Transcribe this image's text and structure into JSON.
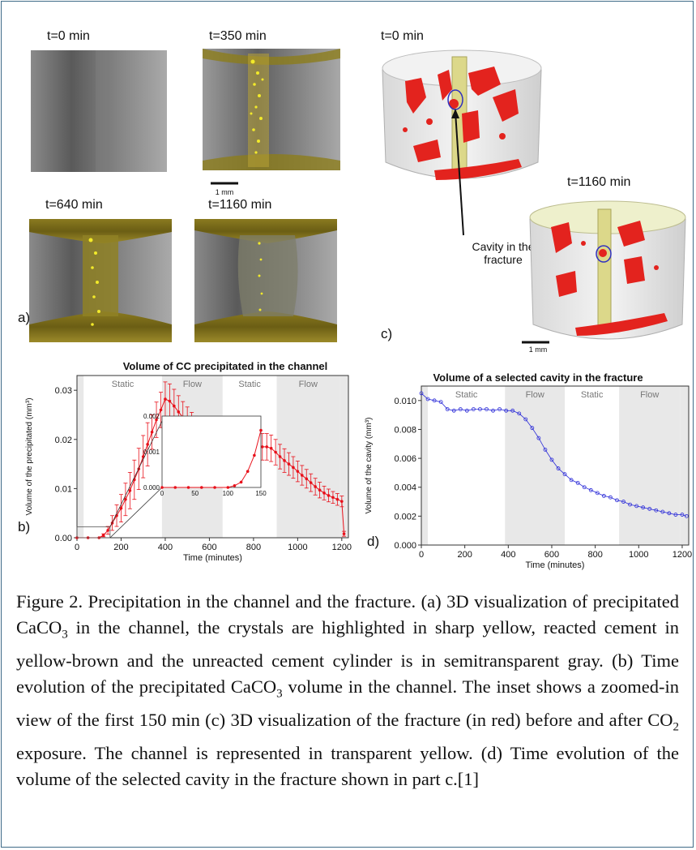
{
  "panel_a": {
    "label": "a)",
    "frames": [
      {
        "title": "t=0 min"
      },
      {
        "title": "t=350 min"
      },
      {
        "title": "t=640 min"
      },
      {
        "title": "t=1160 min"
      }
    ],
    "scalebar": "1 mm"
  },
  "panel_c": {
    "label": "c)",
    "frames": [
      {
        "title": "t=0 min"
      },
      {
        "title": "t=1160 min"
      }
    ],
    "annotation_line1": "Cavity in the",
    "annotation_line2": "fracture",
    "scalebar": "1 mm"
  },
  "panel_b": {
    "label": "b)"
  },
  "panel_d": {
    "label": "d)"
  },
  "colors": {
    "frame_border": "#3f6b88",
    "fracture_red": "#e3231e",
    "crystal_yellow": "#f2ea2a",
    "cement_gray": "#6c6c6c",
    "series_b": "#e8101a",
    "series_d": "#2c2cd8",
    "phase_gray": "#e8e8e8"
  },
  "chart_data": [
    {
      "type": "line",
      "title": "Volume of CC precipitated in the channel",
      "xlabel": "Time (minutes)",
      "ylabel": "Volume of the precipitated (mm³)",
      "xlim": [
        0,
        1230
      ],
      "ylim": [
        0,
        0.033
      ],
      "xticks": [
        0,
        200,
        400,
        600,
        800,
        1000,
        1200
      ],
      "yticks": [
        0.0,
        0.01,
        0.02,
        0.03
      ],
      "ytick_labels": [
        "0.00",
        "0.01",
        "0.02",
        "0.03"
      ],
      "phases": [
        {
          "label": "Static",
          "start": 30,
          "end": 385
        },
        {
          "label": "Flow",
          "start": 385,
          "end": 660
        },
        {
          "label": "Static",
          "start": 660,
          "end": 905
        },
        {
          "label": "Flow",
          "start": 905,
          "end": 1190
        }
      ],
      "series": [
        {
          "x": [
            0,
            50,
            100,
            120,
            140,
            160,
            180,
            200,
            220,
            240,
            260,
            280,
            300,
            320,
            340,
            360,
            380,
            400,
            420,
            440,
            460,
            480,
            500,
            520,
            540,
            560,
            580,
            600,
            620,
            640,
            660,
            680,
            700,
            720,
            740,
            760,
            780,
            800,
            820,
            840,
            860,
            880,
            900,
            920,
            940,
            960,
            980,
            1000,
            1020,
            1040,
            1060,
            1080,
            1100,
            1120,
            1140,
            1160,
            1180,
            1200,
            1210
          ],
          "y": [
            0.0,
            0.0,
            0.0,
            0.0005,
            0.0015,
            0.003,
            0.0045,
            0.006,
            0.0078,
            0.0096,
            0.0118,
            0.014,
            0.0165,
            0.019,
            0.0215,
            0.024,
            0.026,
            0.0282,
            0.0278,
            0.0268,
            0.0256,
            0.0245,
            0.0235,
            0.0225,
            0.0217,
            0.0208,
            0.0201,
            0.0195,
            0.019,
            0.0186,
            0.0185,
            0.0185,
            0.0185,
            0.0185,
            0.0185,
            0.0185,
            0.0185,
            0.0185,
            0.0185,
            0.0185,
            0.0185,
            0.0182,
            0.0174,
            0.0165,
            0.0157,
            0.015,
            0.0143,
            0.0135,
            0.0127,
            0.012,
            0.0112,
            0.0104,
            0.0097,
            0.0091,
            0.0086,
            0.0082,
            0.0078,
            0.0074,
            0.0008
          ],
          "err": [
            0.0,
            0.0,
            0.0,
            0.0003,
            0.0008,
            0.0015,
            0.0022,
            0.0028,
            0.0033,
            0.0037,
            0.004,
            0.0042,
            0.0043,
            0.0044,
            0.0035,
            0.0036,
            0.0036,
            0.0035,
            0.0035,
            0.0034,
            0.0033,
            0.0032,
            0.0031,
            0.003,
            0.003,
            0.0029,
            0.0028,
            0.0028,
            0.0027,
            0.0027,
            0.0027,
            0.0027,
            0.0027,
            0.0027,
            0.0027,
            0.0027,
            0.0027,
            0.0027,
            0.0027,
            0.0027,
            0.0027,
            0.0027,
            0.0026,
            0.0025,
            0.0024,
            0.0023,
            0.0022,
            0.0021,
            0.002,
            0.0019,
            0.0018,
            0.0017,
            0.0016,
            0.0014,
            0.0013,
            0.0012,
            0.0012,
            0.0011,
            0.0005
          ]
        }
      ],
      "inset": {
        "xlim": [
          0,
          150
        ],
        "ylim": [
          0,
          0.002
        ],
        "xticks": [
          0,
          50,
          100,
          150
        ],
        "yticks": [
          0.0,
          0.001,
          0.002
        ],
        "ytick_labels": [
          "0.000",
          "0.001",
          "0.002"
        ],
        "x": [
          0,
          20,
          40,
          60,
          80,
          100,
          110,
          120,
          130,
          140,
          150
        ],
        "y": [
          0,
          0,
          0,
          0,
          0,
          0,
          5e-05,
          0.00015,
          0.00045,
          0.0009,
          0.0016
        ]
      }
    },
    {
      "type": "scatter",
      "title": "Volume of a selected  cavity in the fracture",
      "xlabel": "Time (minutes)",
      "ylabel": "Volume of the cavity (mm³)",
      "xlim": [
        0,
        1230
      ],
      "ylim": [
        0,
        0.011
      ],
      "xticks": [
        0,
        200,
        400,
        600,
        800,
        1000,
        1200
      ],
      "yticks": [
        0.0,
        0.002,
        0.004,
        0.006,
        0.008,
        0.01
      ],
      "ytick_labels": [
        "0.000",
        "0.002",
        "0.004",
        "0.006",
        "0.008",
        "0.010"
      ],
      "phases": [
        {
          "label": "Static",
          "start": 30,
          "end": 385
        },
        {
          "label": "Flow",
          "start": 385,
          "end": 660
        },
        {
          "label": "Static",
          "start": 660,
          "end": 910
        },
        {
          "label": "Flow",
          "start": 910,
          "end": 1190
        }
      ],
      "series": [
        {
          "x": [
            0,
            30,
            60,
            90,
            120,
            150,
            180,
            210,
            240,
            270,
            300,
            330,
            360,
            390,
            420,
            450,
            480,
            510,
            540,
            570,
            600,
            630,
            660,
            690,
            720,
            750,
            780,
            810,
            840,
            870,
            900,
            930,
            960,
            990,
            1020,
            1050,
            1080,
            1110,
            1140,
            1170,
            1200,
            1220
          ],
          "y": [
            0.0105,
            0.0101,
            0.01,
            0.0099,
            0.0094,
            0.0093,
            0.0094,
            0.0093,
            0.0094,
            0.0094,
            0.0094,
            0.0093,
            0.0094,
            0.0093,
            0.0093,
            0.0091,
            0.0087,
            0.0081,
            0.0074,
            0.0066,
            0.0059,
            0.0053,
            0.0049,
            0.0045,
            0.0043,
            0.004,
            0.0038,
            0.0036,
            0.0034,
            0.0033,
            0.0031,
            0.003,
            0.0028,
            0.0027,
            0.0026,
            0.0025,
            0.0024,
            0.0023,
            0.0022,
            0.0021,
            0.0021,
            0.002
          ]
        }
      ]
    }
  ],
  "caption": {
    "s1": "Figure 2. Precipitation in the channel and the fracture. (a) 3D visualization of precipitated CaCO",
    "s1_sub": "3",
    "s2": " in the channel, the crystals are highlighted in sharp yellow, reacted cement in yellow-brown and the unreacted cement cylinder is in semitransparent gray. (b) Time evolution of the precipitated CaCO",
    "s2_sub": "3",
    "s3": " volume in the channel. The inset shows a zoomed-in view of the first 150 min (c) 3D visualization of the fracture (in red) before and after CO",
    "s3_sub": "2",
    "s4": " exposure. The channel is represented in transparent yellow. (d) Time evolution of the volume of the selected cavity in the fracture shown in part c.[1]"
  }
}
